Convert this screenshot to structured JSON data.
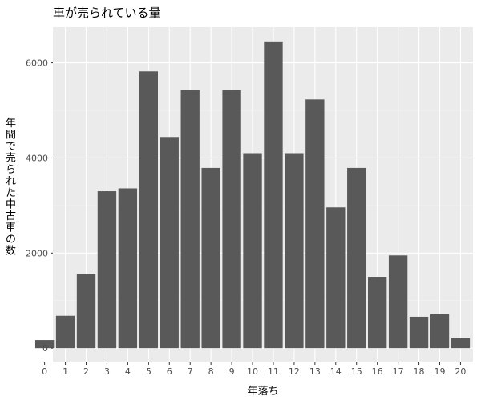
{
  "chart_data": {
    "type": "bar",
    "title": "車が売られている量",
    "xlabel": "年落ち",
    "ylabel": "年間で売られた中古車の数",
    "categories": [
      "0",
      "1",
      "2",
      "3",
      "4",
      "5",
      "6",
      "7",
      "8",
      "9",
      "10",
      "11",
      "12",
      "13",
      "14",
      "15",
      "16",
      "17",
      "18",
      "19",
      "20"
    ],
    "values": [
      170,
      680,
      1560,
      3300,
      3360,
      5820,
      4440,
      5430,
      3790,
      5430,
      4100,
      6450,
      4100,
      5230,
      2960,
      3790,
      1500,
      1950,
      660,
      710,
      210
    ],
    "ylim": [
      -300,
      6750
    ],
    "yticks": [
      0,
      2000,
      4000,
      6000
    ],
    "grid": true,
    "legend": "none",
    "colors": {
      "bar": "#595959",
      "panel": "#ebebeb",
      "grid_major": "#ffffff",
      "grid_minor": "#f5f5f5"
    }
  }
}
